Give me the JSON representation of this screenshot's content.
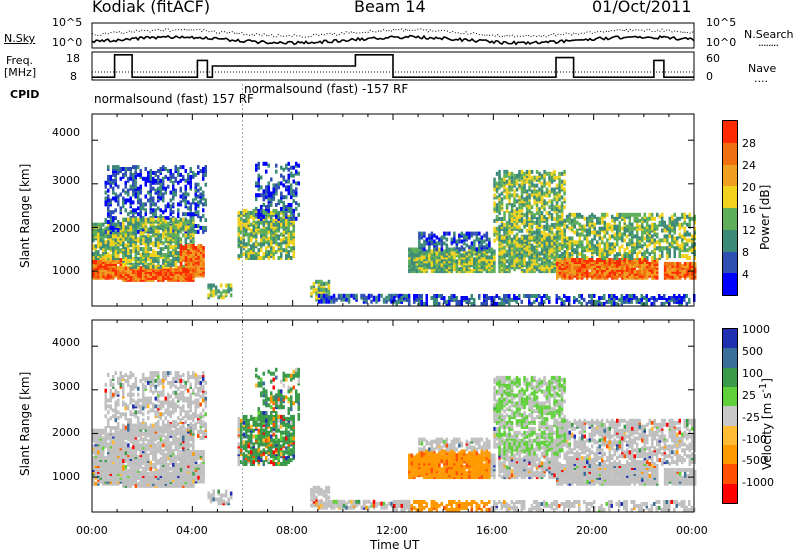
{
  "header": {
    "station": "Kodiak (fitACF)",
    "beam": "Beam 14",
    "date": "01/Oct/2011"
  },
  "side_labels": {
    "nsky": "N.Sky",
    "freq_line1": "Freq.",
    "freq_line2": "[MHz]",
    "cpid": "CPID",
    "nsearch": "N.Search",
    "nsearch_line": "........",
    "nave": "Nave",
    "nave_line": "...."
  },
  "cpid_labels": [
    {
      "text": "normalsound (fast) 157 RF",
      "time_h": 0.0
    },
    {
      "text": "normalsound (fast) -157 RF",
      "time_h": 6.0
    }
  ],
  "colors": {
    "power": [
      "#0000ff",
      "#2f4fb3",
      "#3c8a78",
      "#5fae5a",
      "#f2d21c",
      "#f0a020",
      "#f07010",
      "#ff2a00"
    ],
    "velocity": [
      "#ff0000",
      "#ff5000",
      "#ff9900",
      "#ffbb33",
      "#c8c8c8",
      "#5fcf3a",
      "#3a9a4a",
      "#3a6f9a",
      "#2030b0"
    ],
    "gray": "#c0c0c0"
  },
  "chart_data": [
    {
      "type": "line",
      "name": "noise",
      "ylabels_left": [
        "10^5",
        "10^0"
      ],
      "ylabels_right": [
        "10^5",
        "10^0"
      ],
      "series": [
        {
          "name": "N.Sky",
          "style": "solid"
        },
        {
          "name": "N.Search",
          "style": "dotted"
        }
      ]
    },
    {
      "type": "line",
      "name": "frequency",
      "left_ticks": [
        "18",
        "8"
      ],
      "right_ticks": [
        "60",
        "0"
      ],
      "series": [
        {
          "name": "Freq.",
          "style": "solid",
          "x": [
            0,
            0.9,
            0.9,
            1.6,
            1.6,
            4.2,
            4.2,
            4.6,
            4.6,
            4.8,
            4.8,
            10.5,
            10.5,
            12.0,
            12.0,
            12.2,
            12.2,
            18.5,
            18.5,
            19.2,
            19.2,
            22.4,
            22.4,
            22.8,
            22.8,
            24
          ],
          "y": [
            9,
            9,
            17,
            17,
            9,
            9,
            15,
            15,
            9,
            9,
            13,
            13,
            17,
            17,
            9,
            9,
            9,
            9,
            16,
            16,
            9,
            9,
            15,
            15,
            9,
            9
          ]
        },
        {
          "name": "Nave",
          "style": "dotted"
        }
      ]
    },
    {
      "type": "heatmap",
      "name": "power",
      "ylabel": "Slant Range [km]",
      "yticks": [
        1000,
        2000,
        3000,
        4000
      ],
      "ylim": [
        200,
        4600
      ],
      "colorbar_label": "Power [dB]",
      "colorbar_ticks": [
        "4",
        "8",
        "12",
        "16",
        "20",
        "24",
        "28"
      ],
      "colorbar_range": [
        0,
        32
      ]
    },
    {
      "type": "heatmap",
      "name": "velocity",
      "ylabel": "Slant Range [km]",
      "yticks": [
        1000,
        2000,
        3000,
        4000
      ],
      "ylim": [
        200,
        4600
      ],
      "colorbar_label": "Velocity [m s^-1]",
      "colorbar_ticks": [
        "-1000",
        "-500",
        "-100",
        "-25",
        "25",
        "100",
        "500",
        "1000"
      ]
    }
  ],
  "xaxis": {
    "ticks": [
      "00:00",
      "04:00",
      "08:00",
      "12:00",
      "16:00",
      "20:00",
      "00:00"
    ],
    "label": "Time UT"
  }
}
